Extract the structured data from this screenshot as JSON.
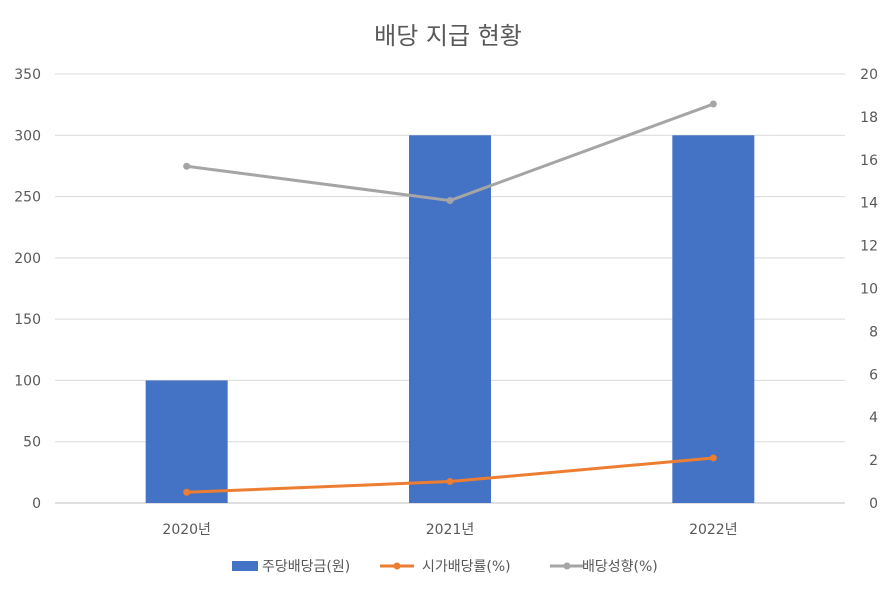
{
  "chart_data": {
    "type": "bar",
    "title": "배당 지급 현황",
    "categories": [
      "2020년",
      "2021년",
      "2022년"
    ],
    "left_axis": {
      "min": 0,
      "max": 350,
      "step": 50,
      "ticks": [
        "0",
        "50",
        "100",
        "150",
        "200",
        "250",
        "300",
        "350"
      ]
    },
    "right_axis": {
      "min": 0,
      "max": 20,
      "step": 2,
      "ticks": [
        "0",
        "2",
        "4",
        "6",
        "8",
        "10",
        "12",
        "14",
        "16",
        "18",
        "20"
      ]
    },
    "grid": true,
    "legend_position": "bottom",
    "series": [
      {
        "name": "주당배당금(원)",
        "type": "bar",
        "axis": "left",
        "color": "#4472C4",
        "values": [
          100,
          300,
          300
        ]
      },
      {
        "name": "시가배당률(%)",
        "type": "line",
        "axis": "right",
        "color": "#ED7D31",
        "values": [
          0.5,
          1.0,
          2.1
        ]
      },
      {
        "name": "배당성향(%)",
        "type": "line",
        "axis": "right",
        "color": "#A5A5A5",
        "values": [
          15.7,
          14.1,
          18.6
        ]
      }
    ]
  }
}
